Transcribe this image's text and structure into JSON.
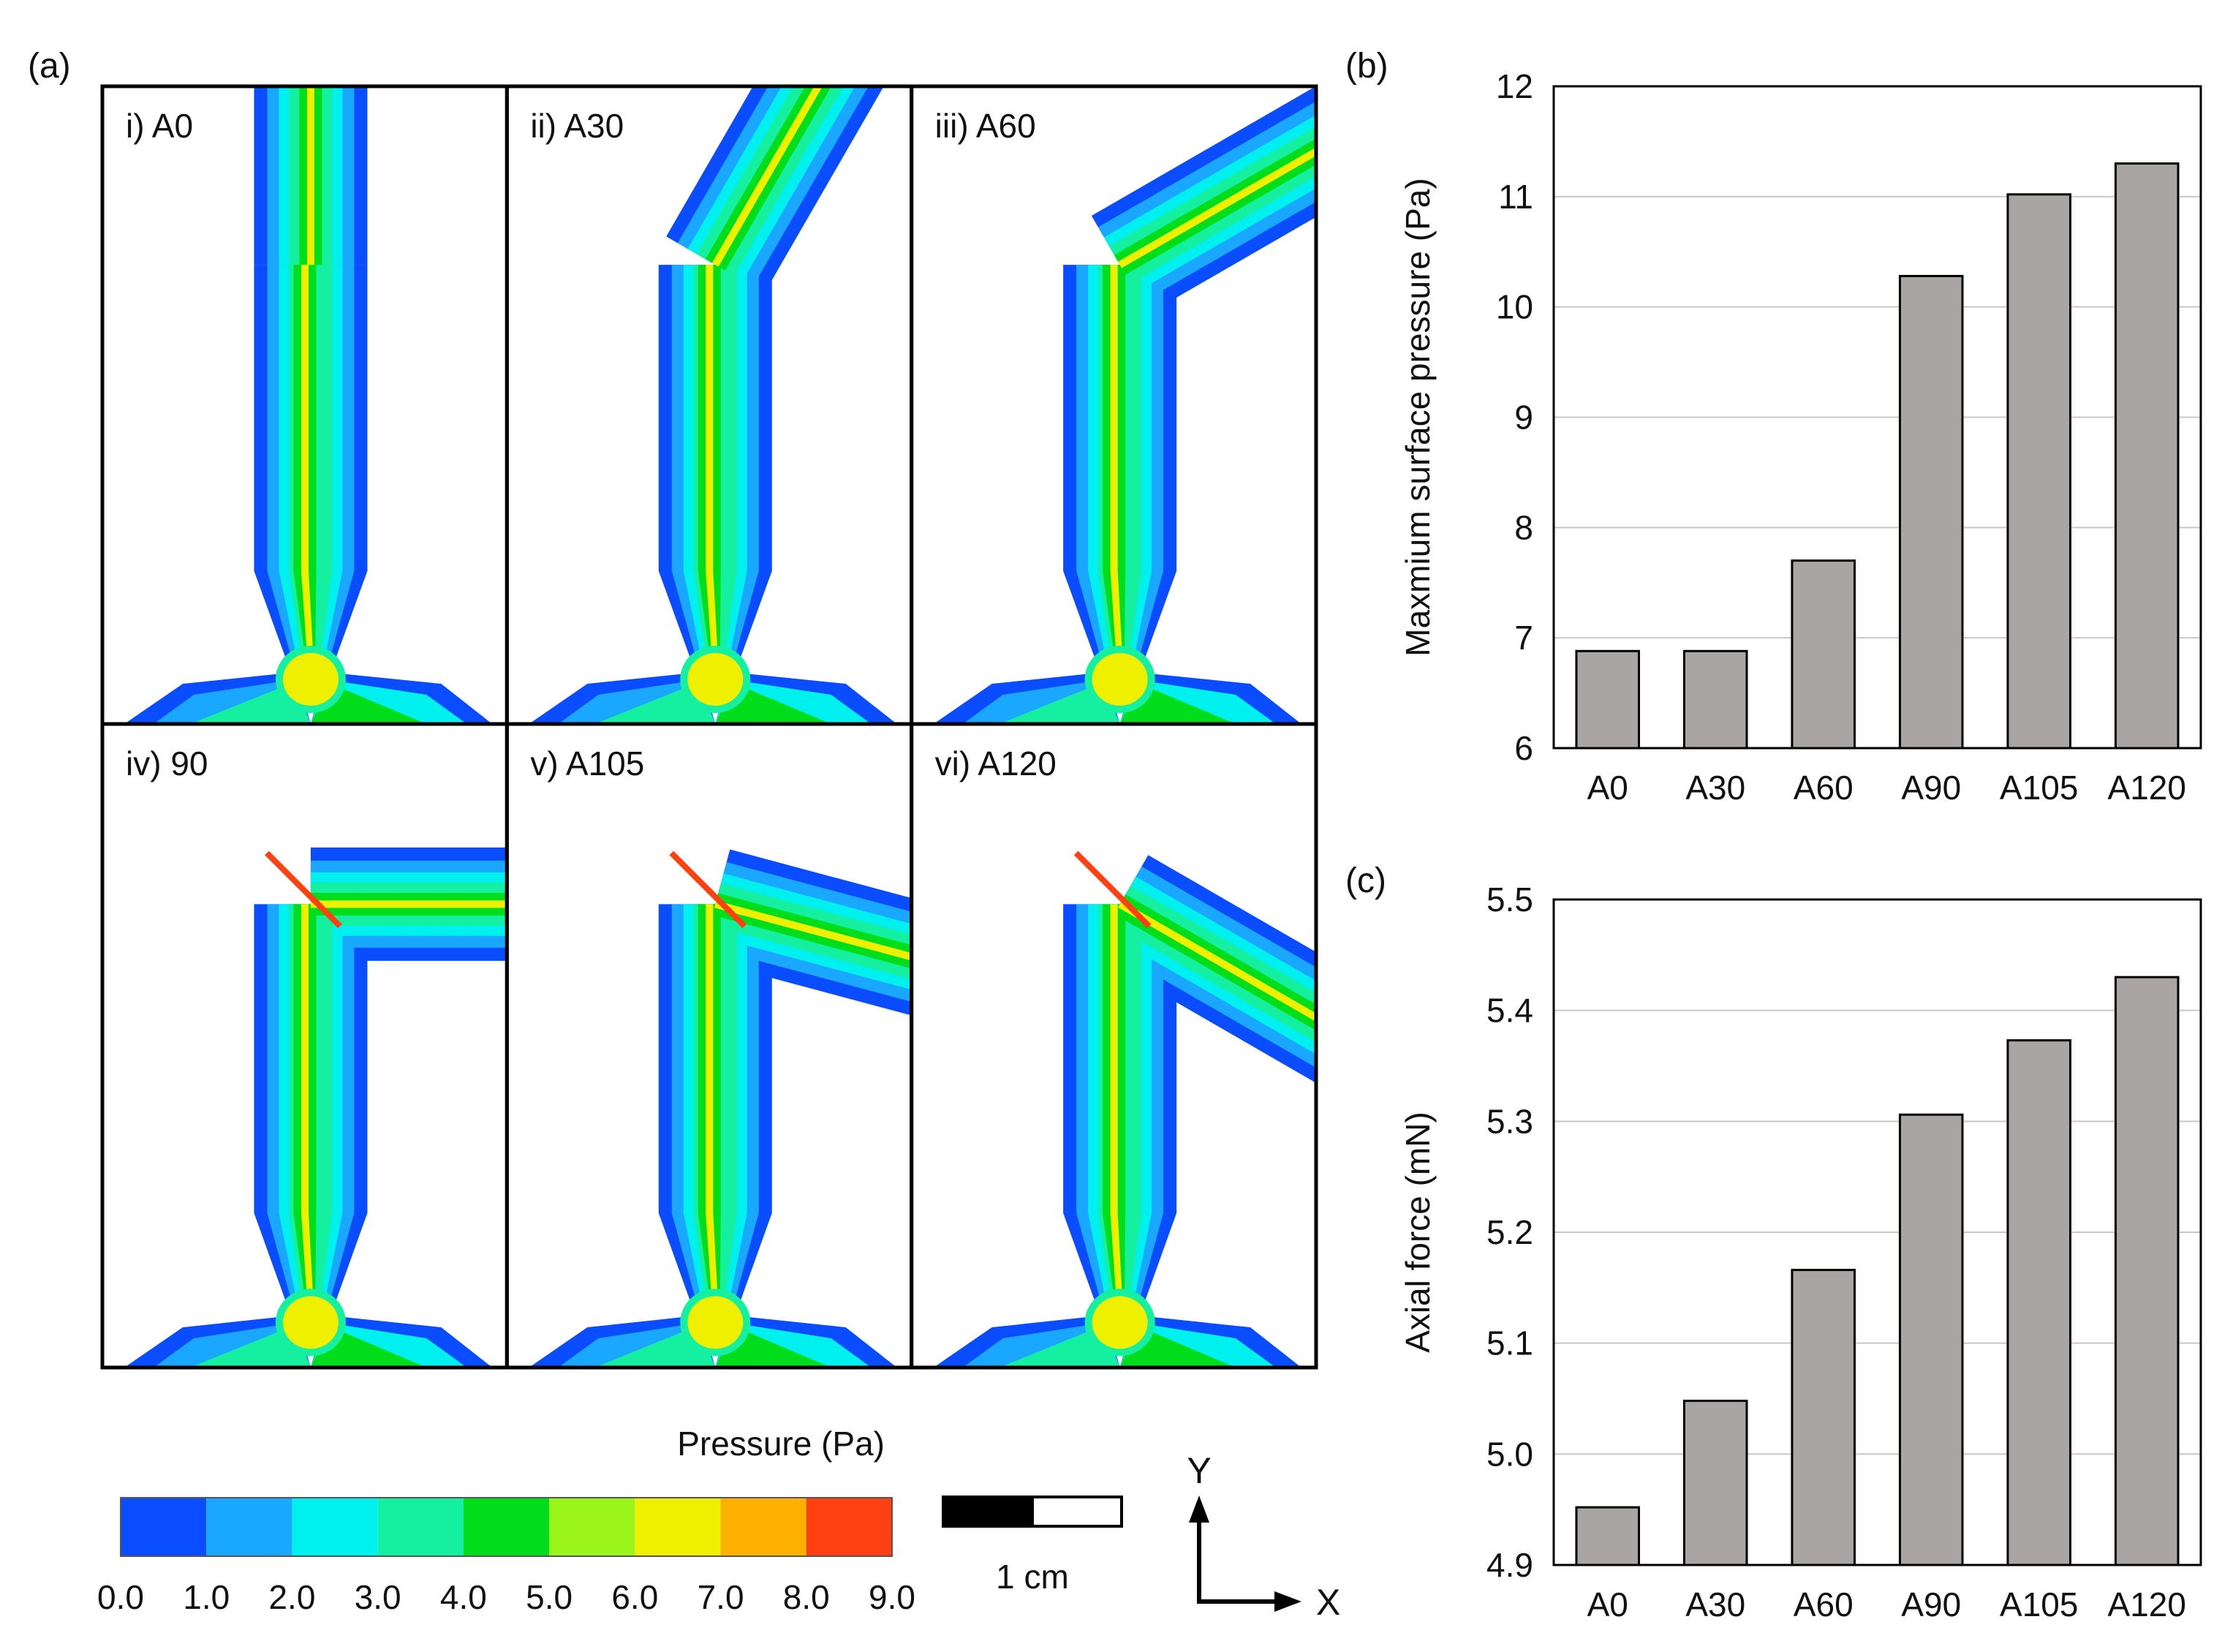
{
  "panel_a": {
    "label": "(a)",
    "panels": [
      {
        "label": "i) A0",
        "angle": 0
      },
      {
        "label": "ii) A30",
        "angle": 30
      },
      {
        "label": "iii) A60",
        "angle": 60
      },
      {
        "label": "iv) 90",
        "angle": 90
      },
      {
        "label": "v) A105",
        "angle": 105
      },
      {
        "label": "vi) A120",
        "angle": 120
      }
    ],
    "colorbar": {
      "title": "Pressure (Pa)",
      "ticks": [
        "0.0",
        "1.0",
        "2.0",
        "3.0",
        "4.0",
        "5.0",
        "6.0",
        "7.0",
        "8.0",
        "9.0"
      ],
      "colors": [
        "#0a4cff",
        "#1aa7ff",
        "#00f0f0",
        "#14f0a0",
        "#00dd1a",
        "#9bf51a",
        "#eef000",
        "#ffb000",
        "#ff4010"
      ]
    },
    "scale_bar": "1 cm",
    "axis_x": "X",
    "axis_y": "Y"
  },
  "chart_data": [
    {
      "type": "bar",
      "label": "(b)",
      "title": "",
      "xlabel": "",
      "ylabel": "Maxmium surface pressure (Pa)",
      "categories": [
        "A0",
        "A30",
        "A60",
        "A90",
        "A105",
        "A120"
      ],
      "values": [
        6.88,
        6.88,
        7.7,
        10.28,
        11.02,
        11.3
      ],
      "ylim": [
        6,
        12
      ],
      "yticks": [
        "6",
        "7",
        "8",
        "9",
        "10",
        "11",
        "12"
      ],
      "grid": true,
      "bar_color": "#a9a5a5"
    },
    {
      "type": "bar",
      "label": "(c)",
      "title": "",
      "xlabel": "",
      "ylabel": "Axial force (mN)",
      "categories": [
        "A0",
        "A30",
        "A60",
        "A90",
        "A105",
        "A120"
      ],
      "values": [
        4.952,
        5.048,
        5.166,
        5.306,
        5.373,
        5.43
      ],
      "ylim": [
        4.9,
        5.5
      ],
      "yticks": [
        "4.9",
        "5.0",
        "5.1",
        "5.2",
        "5.3",
        "5.4",
        "5.5"
      ],
      "grid": true,
      "bar_color": "#a9a5a5"
    }
  ]
}
